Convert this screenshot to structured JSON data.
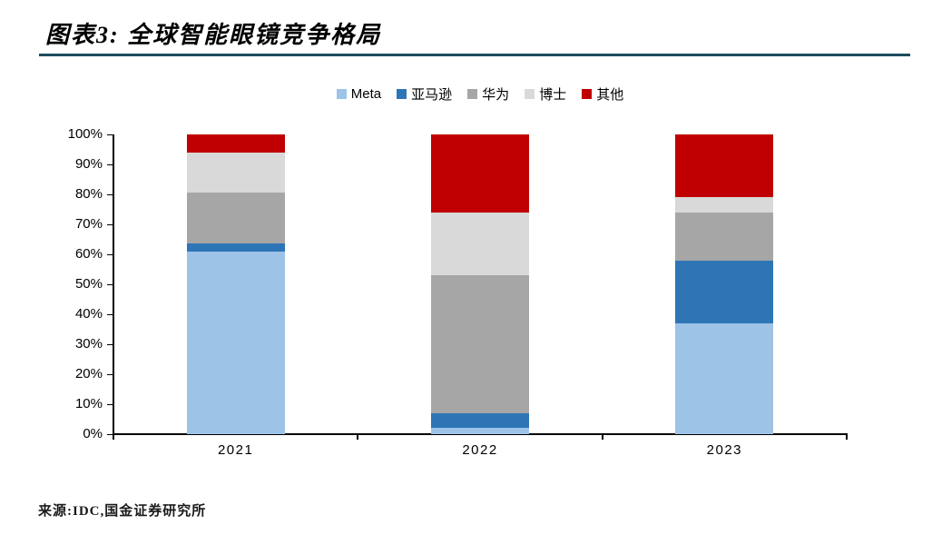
{
  "header": {
    "title": "图表3: 全球智能眼镜竞争格局",
    "rule_color": "#1C4B5E"
  },
  "footer": {
    "source": "来源:IDC,国金证券研究所"
  },
  "chart_data": {
    "type": "bar",
    "stacked": true,
    "title": "全球智能眼镜竞争格局",
    "categories": [
      "2021",
      "2022",
      "2023"
    ],
    "series": [
      {
        "name": "Meta",
        "color": "#9DC3E6",
        "values": [
          61,
          2,
          37
        ]
      },
      {
        "name": "亚马逊",
        "color": "#2E75B6",
        "values": [
          2.5,
          5,
          21
        ]
      },
      {
        "name": "华为",
        "color": "#A6A6A6",
        "values": [
          17,
          46,
          16
        ]
      },
      {
        "name": "博士",
        "color": "#D9D9D9",
        "values": [
          13.5,
          21,
          5
        ]
      },
      {
        "name": "其他",
        "color": "#C00000",
        "values": [
          6,
          26,
          21
        ]
      }
    ],
    "xlabel": "",
    "ylabel": "",
    "ylim": [
      0,
      100
    ],
    "yticks": [
      "0%",
      "10%",
      "20%",
      "30%",
      "40%",
      "50%",
      "60%",
      "70%",
      "80%",
      "90%",
      "100%"
    ],
    "grid": false,
    "legend_position": "top-center",
    "axis_color": "#000000"
  }
}
